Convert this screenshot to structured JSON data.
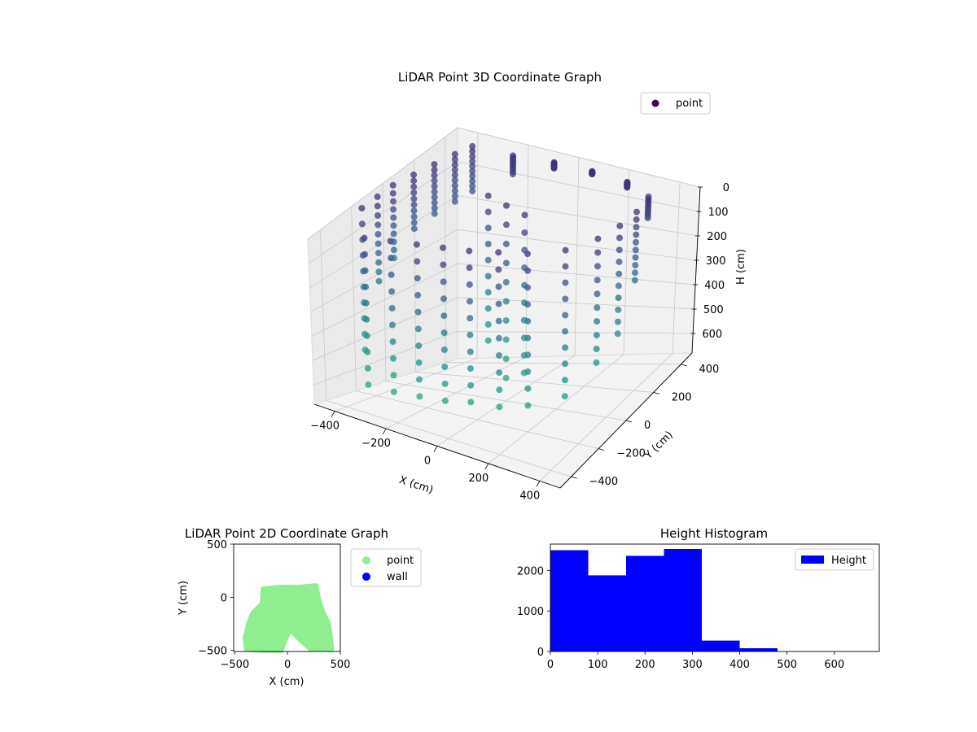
{
  "chart_data": [
    {
      "type": "scatter",
      "projection": "3d",
      "title": "LiDAR Point 3D Coordinate Graph",
      "xlabel": "X (cm)",
      "ylabel": "Y (cm)",
      "zlabel": "H (cm)",
      "xticks": [
        -400,
        -200,
        0,
        200,
        400
      ],
      "yticks": [
        -400,
        -200,
        0,
        200,
        400
      ],
      "zticks": [
        0,
        100,
        200,
        300,
        400,
        500,
        600
      ],
      "xlim": [
        -480,
        480
      ],
      "ylim": [
        -480,
        480
      ],
      "zlim": [
        0,
        680
      ],
      "z_inverted": true,
      "grid": true,
      "colormap": "viridis",
      "legend": {
        "position": "upper-right",
        "entries": [
          {
            "name": "point",
            "color": "#440154"
          }
        ]
      },
      "series": [
        {
          "name": "point",
          "description_points": [
            {
              "x": -440,
              "y": -200,
              "h": 520
            },
            {
              "x": -440,
              "y": -100,
              "h": 300
            },
            {
              "x": -440,
              "y": 0,
              "h": 250
            },
            {
              "x": -420,
              "y": 100,
              "h": 180
            },
            {
              "x": -400,
              "y": 200,
              "h": 160
            },
            {
              "x": -380,
              "y": 300,
              "h": 150
            },
            {
              "x": -360,
              "y": 380,
              "h": 140
            },
            {
              "x": -300,
              "y": -420,
              "h": 560
            },
            {
              "x": -200,
              "y": -420,
              "h": 560
            },
            {
              "x": -100,
              "y": -420,
              "h": 550
            },
            {
              "x": 0,
              "y": -420,
              "h": 540
            },
            {
              "x": 100,
              "y": -420,
              "h": 520
            },
            {
              "x": 200,
              "y": -400,
              "h": 520
            },
            {
              "x": 300,
              "y": -380,
              "h": 500
            },
            {
              "x": 400,
              "y": -300,
              "h": 480
            },
            {
              "x": 440,
              "y": -150,
              "h": 420
            },
            {
              "x": 440,
              "y": 0,
              "h": 380
            },
            {
              "x": 420,
              "y": 150,
              "h": 250
            },
            {
              "x": 380,
              "y": 300,
              "h": 80
            },
            {
              "x": 250,
              "y": 380,
              "h": 20
            },
            {
              "x": 100,
              "y": 400,
              "h": 10
            },
            {
              "x": -50,
              "y": 400,
              "h": 20
            },
            {
              "x": -200,
              "y": 380,
              "h": 60
            },
            {
              "x": 0,
              "y": 0,
              "h": 600
            },
            {
              "x": -100,
              "y": 50,
              "h": 500
            },
            {
              "x": 100,
              "y": -50,
              "h": 550
            }
          ]
        }
      ]
    },
    {
      "type": "scatter",
      "title": "LiDAR Point 2D Coordinate Graph",
      "xlabel": "X (cm)",
      "ylabel": "Y (cm)",
      "xticks": [
        -500,
        0,
        500
      ],
      "yticks": [
        -500,
        0,
        500
      ],
      "xlim": [
        -510,
        500
      ],
      "ylim": [
        -510,
        500
      ],
      "legend": {
        "position": "outside-right",
        "entries": [
          {
            "name": "point",
            "color": "#90ee90"
          },
          {
            "name": "wall",
            "color": "#0000ff"
          }
        ]
      },
      "series": [
        {
          "name": "point",
          "color": "#90ee90",
          "outline": [
            [
              -390,
              -490
            ],
            [
              -400,
              -380
            ],
            [
              -370,
              -250
            ],
            [
              -330,
              -150
            ],
            [
              -240,
              -60
            ],
            [
              -230,
              80
            ],
            [
              -50,
              95
            ],
            [
              120,
              95
            ],
            [
              270,
              110
            ],
            [
              290,
              0
            ],
            [
              330,
              -130
            ],
            [
              390,
              -250
            ],
            [
              410,
              -400
            ],
            [
              420,
              -490
            ],
            [
              220,
              -490
            ],
            [
              100,
              -380
            ],
            [
              20,
              -300
            ],
            [
              -20,
              -400
            ],
            [
              -60,
              -500
            ],
            [
              -200,
              -500
            ]
          ]
        },
        {
          "name": "wall",
          "color": "#0000ff",
          "points": []
        }
      ]
    },
    {
      "type": "bar",
      "subtype": "histogram",
      "title": "Height Histogram",
      "xlabel": "",
      "ylabel": "",
      "xticks": [
        0,
        100,
        200,
        300,
        400,
        500,
        600
      ],
      "yticks": [
        0,
        1000,
        2000
      ],
      "xlim": [
        0,
        695
      ],
      "ylim": [
        0,
        2650
      ],
      "color": "#0000ff",
      "legend": {
        "position": "upper-right",
        "entries": [
          {
            "name": "Height",
            "color": "#0000ff"
          }
        ]
      },
      "bins": [
        {
          "from": 0,
          "to": 80,
          "count": 2500
        },
        {
          "from": 80,
          "to": 160,
          "count": 1880
        },
        {
          "from": 160,
          "to": 240,
          "count": 2360
        },
        {
          "from": 240,
          "to": 320,
          "count": 2530
        },
        {
          "from": 320,
          "to": 400,
          "count": 270
        },
        {
          "from": 400,
          "to": 480,
          "count": 80
        },
        {
          "from": 480,
          "to": 560,
          "count": 0
        },
        {
          "from": 560,
          "to": 640,
          "count": 0
        }
      ]
    }
  ]
}
